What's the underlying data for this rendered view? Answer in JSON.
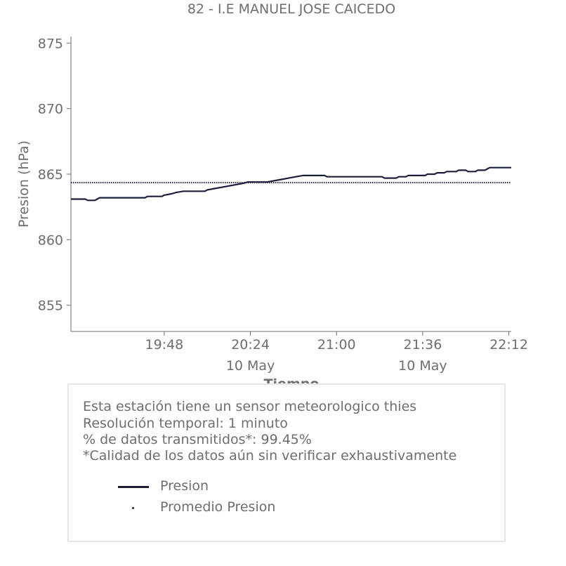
{
  "chart_data": {
    "type": "line",
    "title": "82 - I.E MANUEL JOSE CAICEDO",
    "xlabel": "Tiempo",
    "ylabel": "Presion (hPa)",
    "ylim": [
      853,
      875.5
    ],
    "xlim": [
      "19:09",
      "22:13"
    ],
    "y_ticks": [
      855,
      860,
      865,
      870,
      875
    ],
    "x_ticks": [
      {
        "time": "19:48",
        "sub": ""
      },
      {
        "time": "20:24",
        "sub": "10 May"
      },
      {
        "time": "21:00",
        "sub": ""
      },
      {
        "time": "21:36",
        "sub": "10 May"
      },
      {
        "time": "22:12",
        "sub": ""
      }
    ],
    "grid": false,
    "series": [
      {
        "name": "Presion",
        "color": "#1e1e3c",
        "style": "solid",
        "points": [
          [
            "19:09",
            863.1
          ],
          [
            "19:15",
            863.1
          ],
          [
            "19:16",
            863.0
          ],
          [
            "19:19",
            863.0
          ],
          [
            "19:20",
            863.1
          ],
          [
            "19:21",
            863.2
          ],
          [
            "19:40",
            863.2
          ],
          [
            "19:41",
            863.3
          ],
          [
            "19:47",
            863.3
          ],
          [
            "19:48",
            863.4
          ],
          [
            "19:51",
            863.5
          ],
          [
            "19:53",
            863.6
          ],
          [
            "19:56",
            863.7
          ],
          [
            "20:05",
            863.7
          ],
          [
            "20:06",
            863.8
          ],
          [
            "20:09",
            863.9
          ],
          [
            "20:12",
            864.0
          ],
          [
            "20:15",
            864.1
          ],
          [
            "20:18",
            864.2
          ],
          [
            "20:21",
            864.3
          ],
          [
            "20:23",
            864.4
          ],
          [
            "20:31",
            864.4
          ],
          [
            "20:34",
            864.5
          ],
          [
            "20:37",
            864.6
          ],
          [
            "20:40",
            864.7
          ],
          [
            "20:43",
            864.8
          ],
          [
            "20:46",
            864.9
          ],
          [
            "20:55",
            864.9
          ],
          [
            "20:56",
            864.8
          ],
          [
            "21:19",
            864.8
          ],
          [
            "21:20",
            864.7
          ],
          [
            "21:25",
            864.7
          ],
          [
            "21:26",
            864.8
          ],
          [
            "21:29",
            864.8
          ],
          [
            "21:30",
            864.9
          ],
          [
            "21:37",
            864.9
          ],
          [
            "21:38",
            865.0
          ],
          [
            "21:41",
            865.0
          ],
          [
            "21:42",
            865.1
          ],
          [
            "21:45",
            865.1
          ],
          [
            "21:46",
            865.2
          ],
          [
            "21:50",
            865.2
          ],
          [
            "21:51",
            865.3
          ],
          [
            "21:54",
            865.3
          ],
          [
            "21:55",
            865.2
          ],
          [
            "21:58",
            865.2
          ],
          [
            "21:59",
            865.3
          ],
          [
            "22:02",
            865.3
          ],
          [
            "22:03",
            865.4
          ],
          [
            "22:04",
            865.5
          ],
          [
            "22:13",
            865.5
          ]
        ]
      },
      {
        "name": "Promedio Presion",
        "color": "#1e1e3c",
        "style": "dotted",
        "value": 864.35
      }
    ]
  },
  "info": {
    "lines": [
      "Esta estación tiene un sensor meteorologico thies",
      "Resolución temporal: 1 minuto",
      "% de datos transmitidos*: 99.45%",
      "*Calidad de los datos aún sin verificar exhaustivamente"
    ]
  },
  "legend": {
    "items": [
      {
        "label": "Presion",
        "style": "solid"
      },
      {
        "label": "Promedio Presion",
        "style": "dotted"
      }
    ]
  }
}
